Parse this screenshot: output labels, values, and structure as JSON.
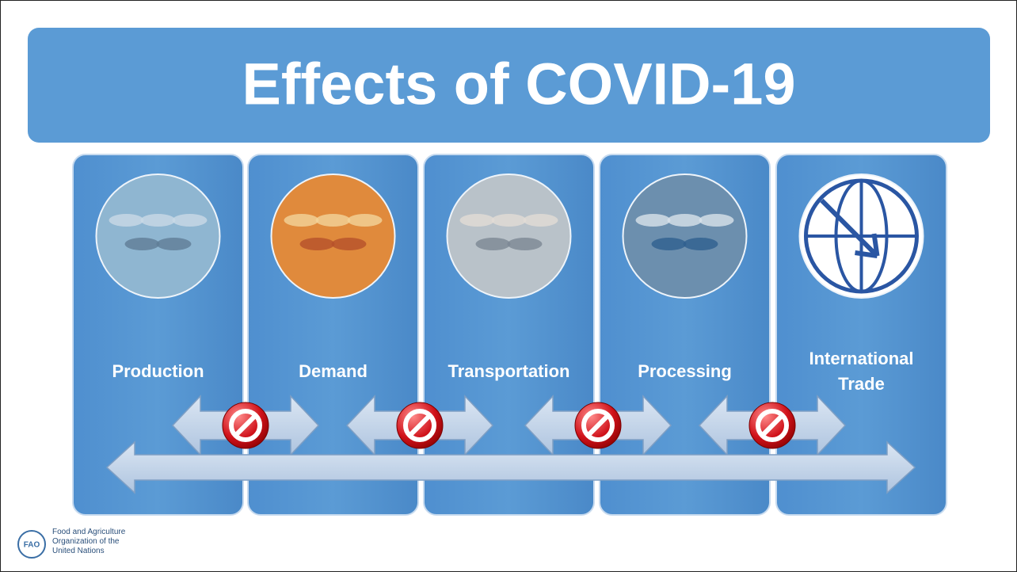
{
  "title": "Effects of COVID-19",
  "stages": [
    {
      "label": "Production"
    },
    {
      "label": "Demand"
    },
    {
      "label": "Transportation"
    },
    {
      "label": "Processing"
    },
    {
      "label": "International Trade"
    }
  ],
  "logo": {
    "lines": [
      "Food and Agriculture",
      "Organization of the",
      "United Nations"
    ]
  }
}
